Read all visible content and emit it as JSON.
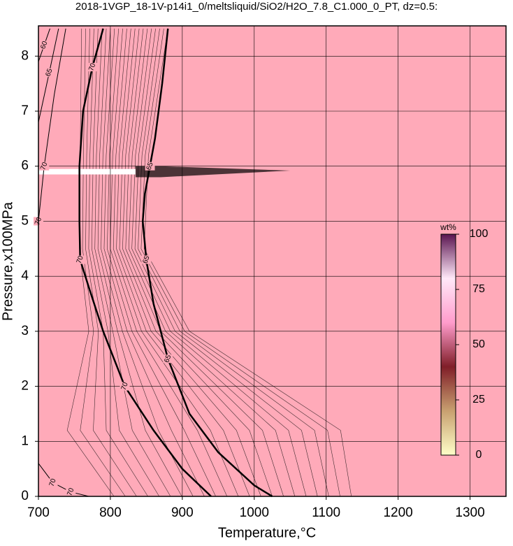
{
  "chart_data": {
    "type": "contour",
    "title": "2018-1VGP_18-1V-p14i1_0/meltsliquid/SiO2/H2O_7.8_C1.000_0_PT, dz=0.5:",
    "x_label": "Temperature,°C",
    "y_label": "Pressure,x100MPa",
    "xlim": [
      700,
      1350
    ],
    "ylim": [
      0,
      8.55
    ],
    "xticks": [
      700,
      800,
      900,
      1000,
      1100,
      1200,
      1300
    ],
    "yticks": [
      0,
      1,
      2,
      3,
      4,
      5,
      6,
      7,
      8
    ],
    "grid": true,
    "background": "#ffaab9",
    "line_color": "#000000",
    "contours": [
      {
        "level": 70,
        "x": [
          790,
          775,
          762,
          757,
          757,
          758,
          770,
          790,
          820,
          860,
          900,
          940
        ],
        "y": [
          8.5,
          7.8,
          7,
          6,
          5,
          4.3,
          3.8,
          3,
          2,
          1.2,
          0.5,
          0
        ]
      },
      {
        "level": 65,
        "x": [
          880,
          872,
          862,
          855,
          848,
          845,
          850,
          860,
          880,
          910,
          950,
          1000,
          1025
        ],
        "y": [
          8.5,
          7.5,
          6.5,
          6,
          5.5,
          5,
          4.3,
          3.5,
          2.5,
          1.5,
          0.8,
          0.2,
          0
        ]
      },
      {
        "level": 60,
        "x": [
          716,
          708,
          700
        ],
        "y": [
          8.5,
          8.2,
          7.9
        ]
      },
      {
        "level": 65,
        "x": [
          728,
          715,
          700
        ],
        "y": [
          8.5,
          7.7,
          6.8
        ]
      },
      {
        "level": 70,
        "x": [
          738,
          722,
          708,
          700
        ],
        "y": [
          8.5,
          7.3,
          6,
          5
        ]
      },
      {
        "level": 70,
        "x": [
          700,
          720,
          745,
          770
        ],
        "y": [
          0.6,
          0.25,
          0.08,
          0
        ]
      }
    ],
    "colorbar": {
      "label": "wt%",
      "lim": [
        0,
        100
      ],
      "ticks": [
        0,
        25,
        50,
        75,
        100
      ],
      "colors": [
        "#ffffc8",
        "#c8a070",
        "#801e28",
        "#ff9ccc",
        "#ffe8f8",
        "#5a1450"
      ]
    }
  }
}
